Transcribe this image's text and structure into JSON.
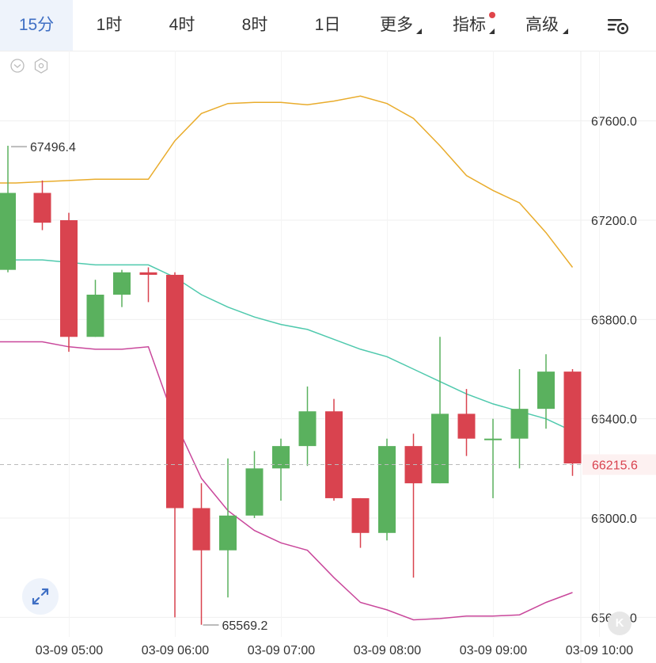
{
  "toolbar": {
    "timeframes": [
      {
        "label": "15分",
        "active": true
      },
      {
        "label": "1时",
        "active": false
      },
      {
        "label": "4时",
        "active": false
      },
      {
        "label": "8时",
        "active": false
      },
      {
        "label": "1日",
        "active": false
      }
    ],
    "more_label": "更多",
    "indicator_label": "指标",
    "advanced_label": "高级",
    "settings_icon": "chart-settings-icon"
  },
  "colors": {
    "up": "#5ab15e",
    "down": "#d9434f",
    "boll_upper": "#e9ac2c",
    "boll_middle": "#4fc9ad",
    "boll_lower": "#c9479b",
    "accent": "#3f6fc4",
    "indicator_dot": "#e0454a",
    "grid": "#efefef",
    "axis_text": "#333333",
    "last_price": "#d9434f"
  },
  "watermark_text": "K",
  "chart_data": {
    "type": "candlestick",
    "title": "",
    "ylim": [
      65550,
      67800
    ],
    "y_ticks": [
      {
        "value": 65600,
        "label": "65600.0"
      },
      {
        "value": 66000,
        "label": "66000.0"
      },
      {
        "value": 66400,
        "label": "66400.0"
      },
      {
        "value": 66800,
        "label": "66800.0"
      },
      {
        "value": 67200,
        "label": "67200.0"
      },
      {
        "value": 67600,
        "label": "67600.0"
      }
    ],
    "x_ticks": [
      {
        "index": 2,
        "label": "03-09 05:00"
      },
      {
        "index": 6,
        "label": "03-09 06:00"
      },
      {
        "index": 10,
        "label": "03-09 07:00"
      },
      {
        "index": 14,
        "label": "03-09 08:00"
      },
      {
        "index": 18,
        "label": "03-09 09:00"
      },
      {
        "index": 22,
        "label": "03-09 10:00"
      }
    ],
    "grid": true,
    "candles": [
      {
        "open": 67000,
        "high": 67500,
        "low": 66990,
        "close": 67310
      },
      {
        "open": 67310,
        "high": 67360,
        "low": 67160,
        "close": 67190
      },
      {
        "open": 67200,
        "high": 67230,
        "low": 66670,
        "close": 66730
      },
      {
        "open": 66730,
        "high": 66960,
        "low": 66730,
        "close": 66900
      },
      {
        "open": 66900,
        "high": 67000,
        "low": 66850,
        "close": 66990
      },
      {
        "open": 66990,
        "high": 67010,
        "low": 66870,
        "close": 66980
      },
      {
        "open": 66980,
        "high": 66990,
        "low": 65600,
        "close": 66040
      },
      {
        "open": 66040,
        "high": 66140,
        "low": 65570,
        "close": 65870
      },
      {
        "open": 65870,
        "high": 66240,
        "low": 65680,
        "close": 66010
      },
      {
        "open": 66010,
        "high": 66270,
        "low": 66000,
        "close": 66200
      },
      {
        "open": 66200,
        "high": 66320,
        "low": 66070,
        "close": 66290
      },
      {
        "open": 66290,
        "high": 66530,
        "low": 66210,
        "close": 66430
      },
      {
        "open": 66430,
        "high": 66480,
        "low": 66070,
        "close": 66080
      },
      {
        "open": 66080,
        "high": 66080,
        "low": 65880,
        "close": 65940
      },
      {
        "open": 65940,
        "high": 66320,
        "low": 65910,
        "close": 66290
      },
      {
        "open": 66290,
        "high": 66340,
        "low": 65760,
        "close": 66140
      },
      {
        "open": 66140,
        "high": 66730,
        "low": 66140,
        "close": 66420
      },
      {
        "open": 66420,
        "high": 66520,
        "low": 66250,
        "close": 66320
      },
      {
        "open": 66320,
        "high": 66400,
        "low": 66080,
        "close": 66320
      },
      {
        "open": 66320,
        "high": 66600,
        "low": 66200,
        "close": 66440
      },
      {
        "open": 66440,
        "high": 66660,
        "low": 66360,
        "close": 66590
      },
      {
        "open": 66590,
        "high": 66600,
        "low": 66170,
        "close": 66220
      }
    ],
    "bollinger": {
      "upper": [
        67350,
        67355,
        67360,
        67365,
        67365,
        67365,
        67520,
        67630,
        67670,
        67675,
        67675,
        67665,
        67680,
        67700,
        67670,
        67610,
        67500,
        67380,
        67320,
        67270,
        67150,
        67010
      ],
      "middle": [
        67040,
        67040,
        67030,
        67020,
        67020,
        67020,
        66970,
        66900,
        66850,
        66810,
        66780,
        66760,
        66720,
        66680,
        66650,
        66600,
        66550,
        66500,
        66460,
        66430,
        66400,
        66350
      ],
      "lower": [
        66710,
        66710,
        66690,
        66680,
        66680,
        66690,
        66390,
        66160,
        66030,
        65950,
        65900,
        65870,
        65760,
        65660,
        65630,
        65590,
        65595,
        65605,
        65605,
        65610,
        65660,
        65700
      ]
    },
    "high_marker": {
      "value": 67496.4,
      "label": "67496.4"
    },
    "low_marker": {
      "value": 65569.2,
      "label": "65569.2"
    },
    "last_price": {
      "value": 66215.6,
      "label": "66215.6"
    }
  }
}
